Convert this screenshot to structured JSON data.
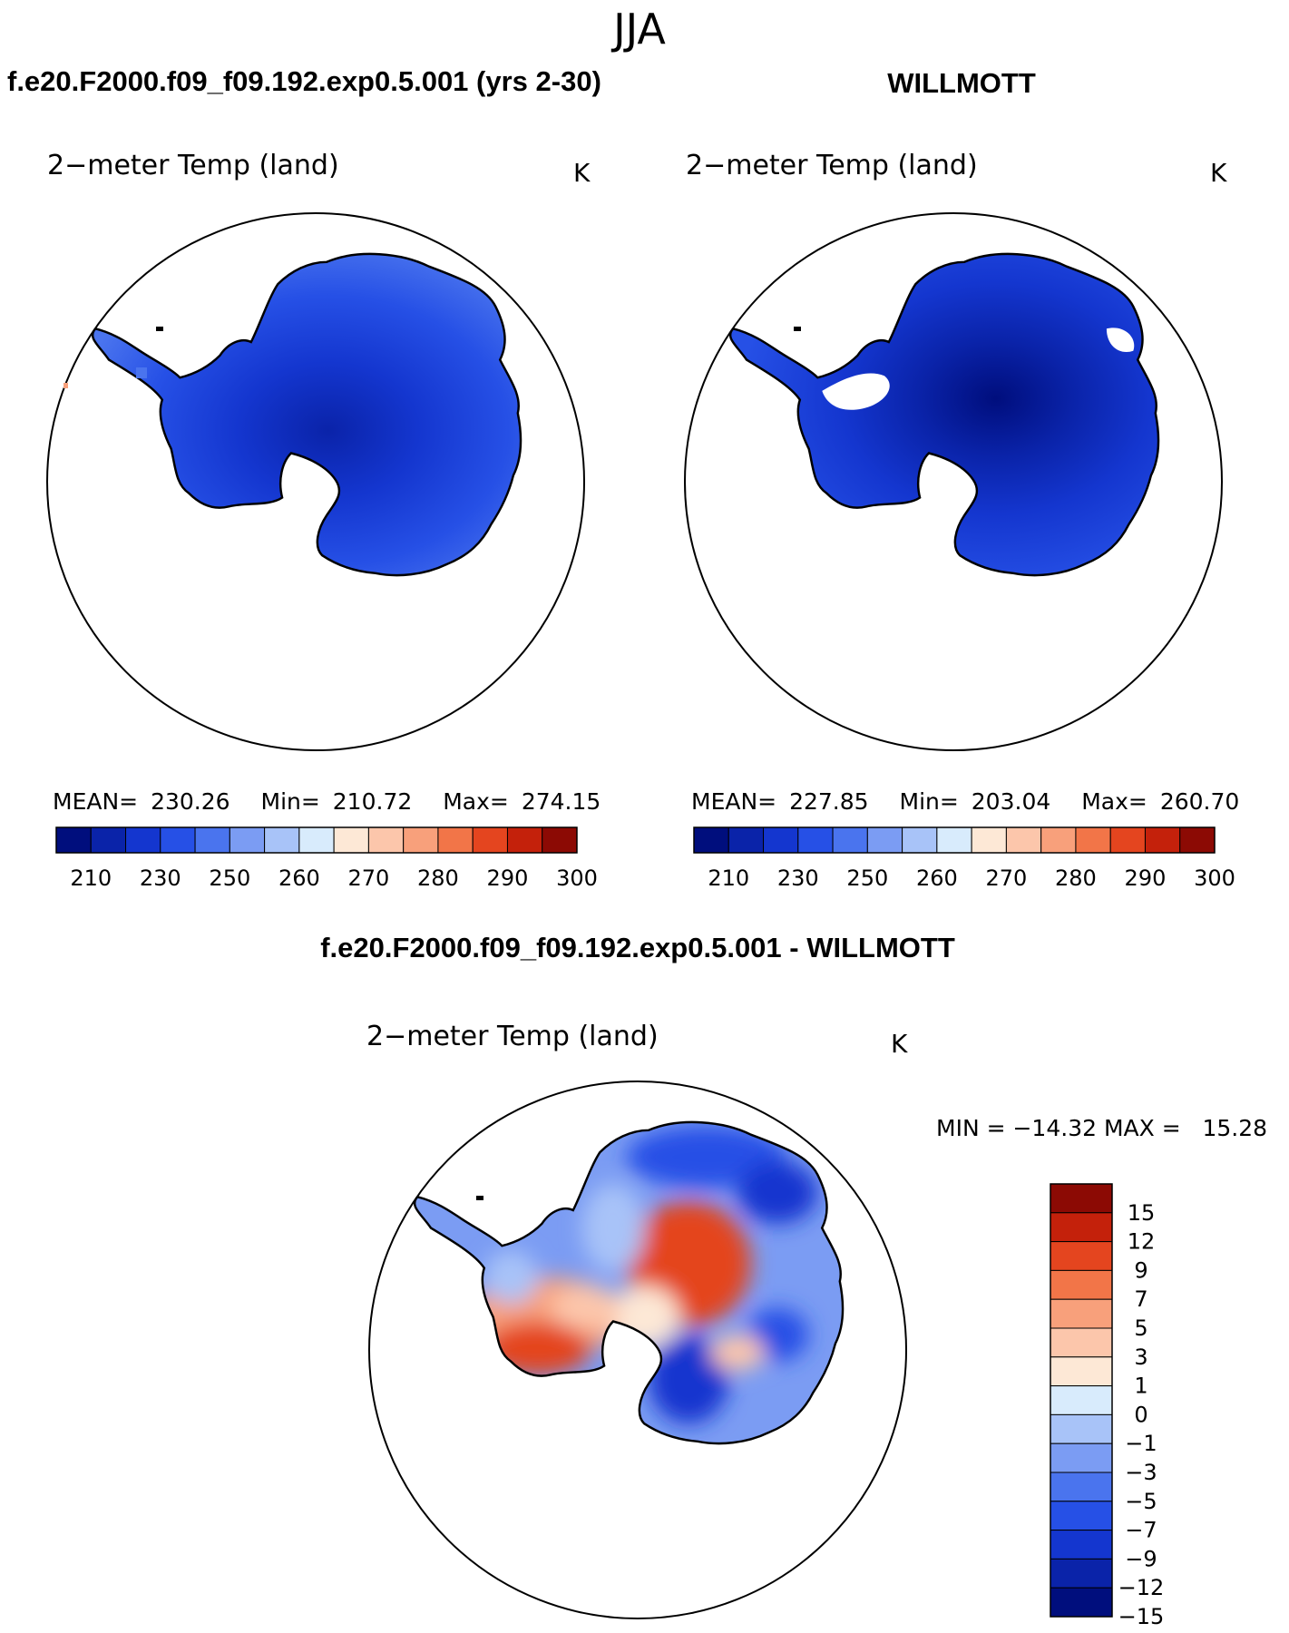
{
  "season": "JJA",
  "panels": [
    {
      "case_title": "f.e20.F2000.f09_f09.192.exp0.5.001 (yrs 2-30)",
      "variable": "2−meter Temp (land)",
      "units": "K",
      "stats": {
        "mean_label": "MEAN=",
        "mean": "230.26",
        "min_label": "Min=",
        "min": "210.72",
        "max_label": "Max=",
        "max": "274.15"
      }
    },
    {
      "case_title": "WILLMOTT",
      "variable": "2−meter Temp (land)",
      "units": "K",
      "stats": {
        "mean_label": "MEAN=",
        "mean": "227.85",
        "min_label": "Min=",
        "min": "203.04",
        "max_label": "Max=",
        "max": "260.70"
      }
    }
  ],
  "abs_colorbar": {
    "colors": [
      "#000e7d",
      "#0a23a9",
      "#1436cf",
      "#2650e6",
      "#4a74ee",
      "#7b9cf3",
      "#a8c3f8",
      "#d8ebfc",
      "#fde8d6",
      "#fcc6ab",
      "#f8a07b",
      "#f27548",
      "#e4451f",
      "#c4210b",
      "#8c0a04"
    ],
    "ticks": [
      "210",
      "230",
      "250",
      "260",
      "270",
      "280",
      "290",
      "300"
    ]
  },
  "diff": {
    "title": "f.e20.F2000.f09_f09.192.exp0.5.001 - WILLMOTT",
    "variable": "2−meter Temp (land)",
    "units": "K",
    "stats_text": "MIN = −14.32 MAX =   15.28"
  },
  "diff_colorbar": {
    "colors_top_to_bottom": [
      "#8c0a04",
      "#c4210b",
      "#e4451f",
      "#f27548",
      "#f8a07b",
      "#fcc6ab",
      "#fde8d6",
      "#d8ebfc",
      "#a8c3f8",
      "#7b9cf3",
      "#4a74ee",
      "#2650e6",
      "#1436cf",
      "#0a23a9",
      "#000e7d"
    ],
    "ticks_top_to_bottom": [
      "15",
      "12",
      "9",
      "7",
      "5",
      "3",
      "1",
      "0",
      "−1",
      "−3",
      "−5",
      "−7",
      "−9",
      "−12",
      "−15"
    ]
  }
}
